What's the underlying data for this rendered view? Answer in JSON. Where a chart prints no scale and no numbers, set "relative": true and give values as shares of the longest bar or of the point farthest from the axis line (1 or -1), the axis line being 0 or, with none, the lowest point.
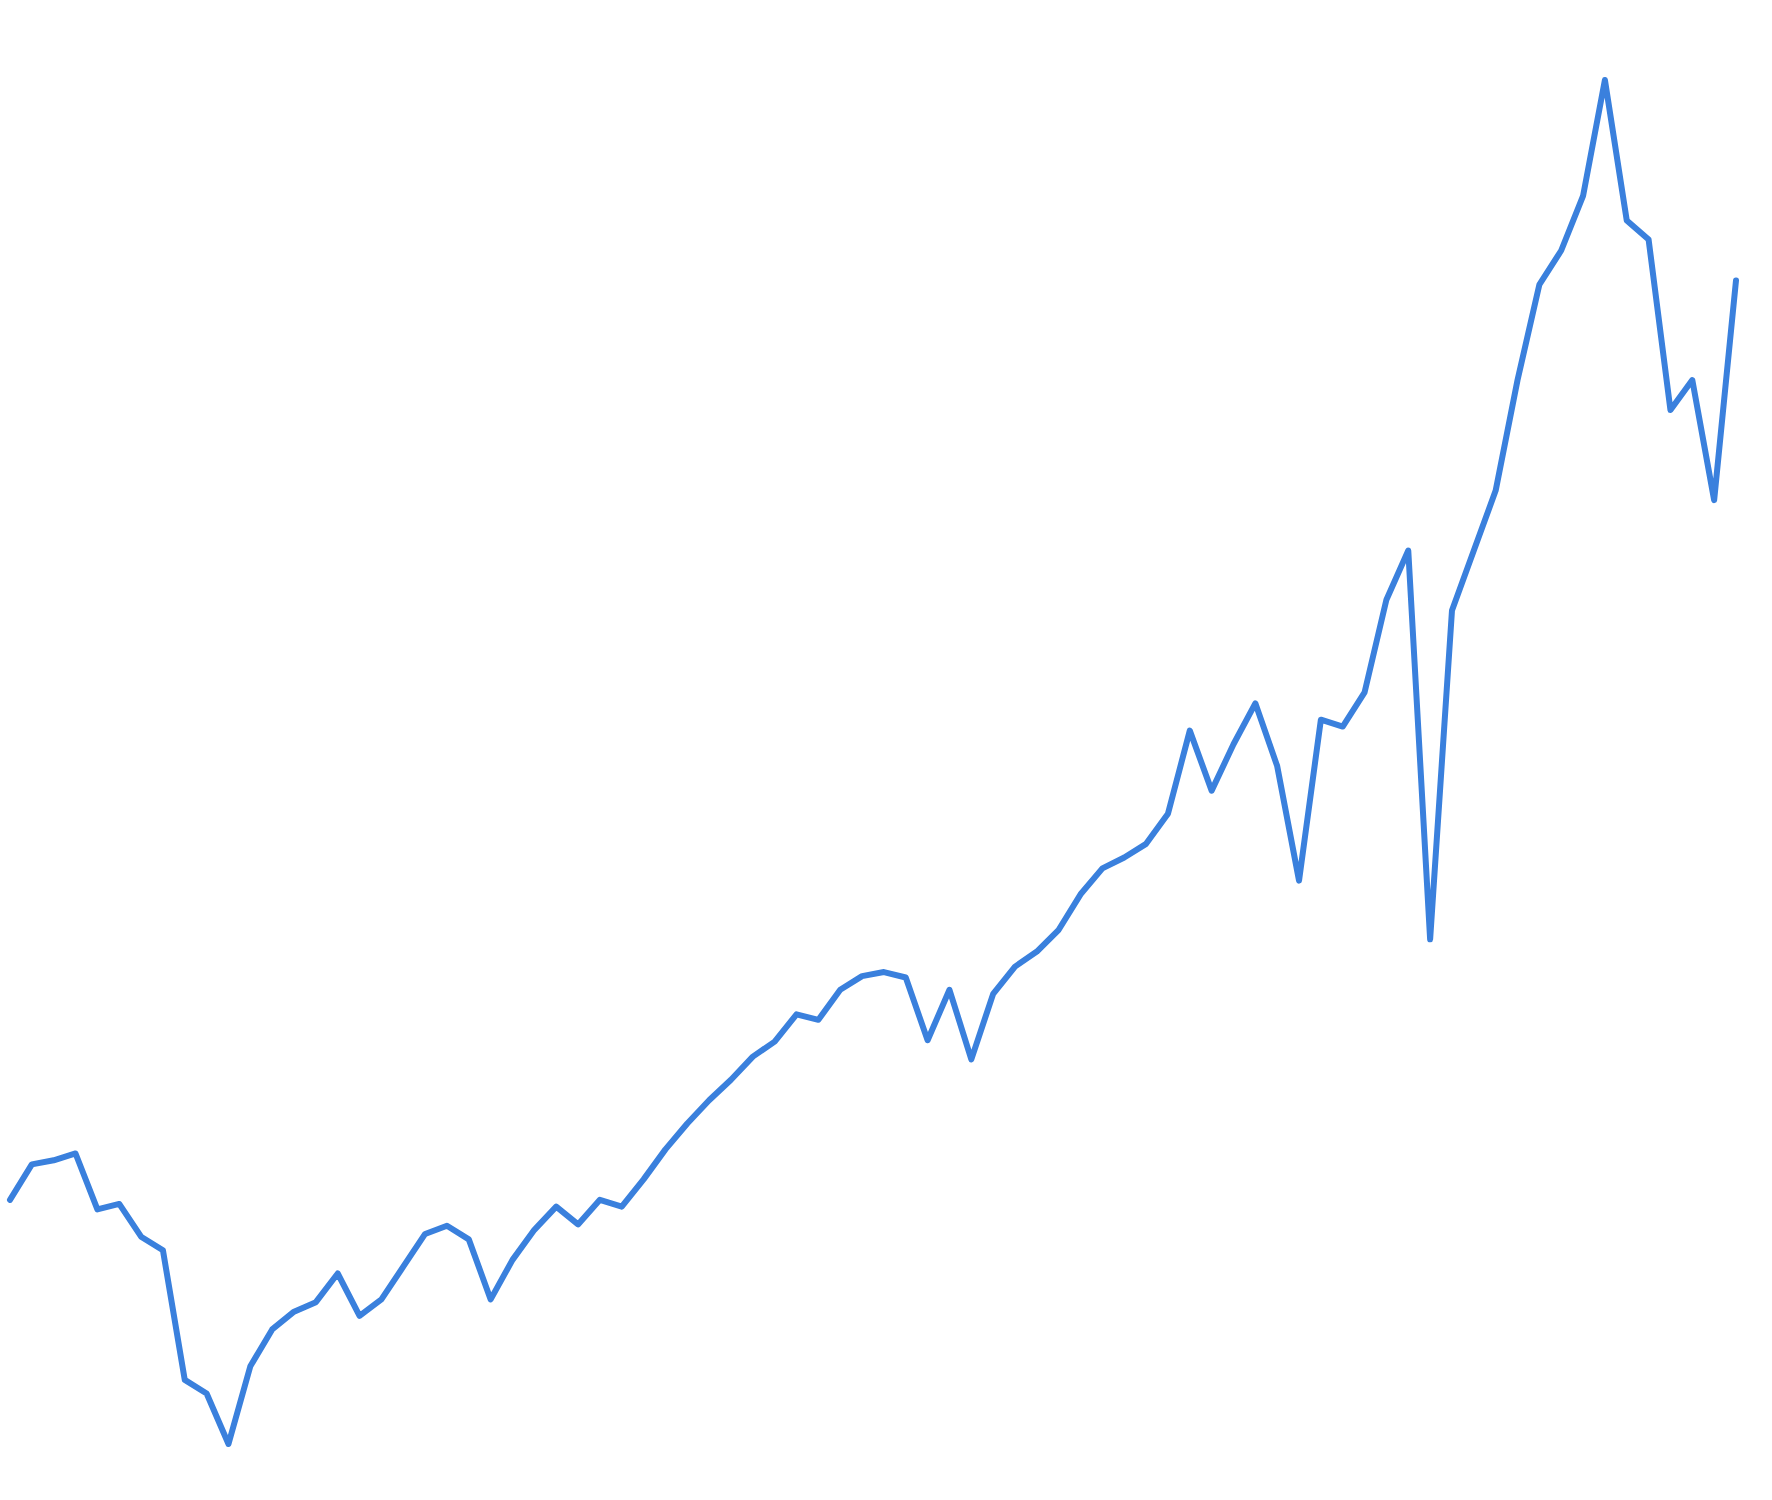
{
  "chart_data": {
    "type": "line",
    "relative": true,
    "tick_labels": false,
    "line_style": "solid",
    "categories": [
      null,
      null,
      null,
      null,
      null,
      null,
      null,
      null,
      null,
      null,
      null,
      null,
      null,
      null,
      null,
      null,
      null,
      null,
      null,
      null,
      null,
      null,
      null,
      null,
      null,
      null,
      null,
      null,
      null,
      null,
      null,
      null,
      null,
      null,
      null,
      null,
      null,
      null,
      null,
      null,
      null,
      null,
      null,
      null,
      null,
      null,
      null,
      null,
      null,
      null,
      null,
      null,
      null,
      null,
      null,
      null,
      null,
      null,
      null,
      null,
      null,
      null,
      null,
      null,
      null,
      null,
      null,
      null,
      null,
      null,
      null,
      null,
      null,
      null,
      null,
      null,
      null,
      null,
      null,
      null
    ],
    "series": [
      {
        "color": "#3a80dd",
        "values": [
          0.179,
          0.205,
          0.208,
          0.213,
          0.172,
          0.176,
          0.152,
          0.142,
          0.047,
          0.037,
          0,
          0.057,
          0.084,
          0.097,
          0.104,
          0.125,
          0.094,
          0.106,
          0.13,
          0.154,
          0.16,
          0.15,
          0.106,
          0.135,
          0.157,
          0.174,
          0.161,
          0.179,
          0.174,
          0.194,
          0.216,
          0.235,
          0.252,
          0.267,
          0.284,
          0.295,
          0.315,
          0.311,
          0.333,
          0.343,
          0.346,
          0.342,
          0.296,
          0.333,
          0.282,
          0.33,
          0.35,
          0.361,
          0.377,
          0.403,
          0.422,
          0.43,
          0.44,
          0.462,
          0.523,
          0.479,
          0.513,
          0.543,
          0.497,
          0.413,
          0.531,
          0.526,
          0.551,
          0.619,
          0.655,
          0.37,
          0.611,
          0.655,
          0.699,
          0.78,
          0.85,
          0.875,
          0.915,
          1,
          0.897,
          0.883,
          0.758,
          0.78,
          0.692,
          0.853
        ]
      }
    ]
  }
}
